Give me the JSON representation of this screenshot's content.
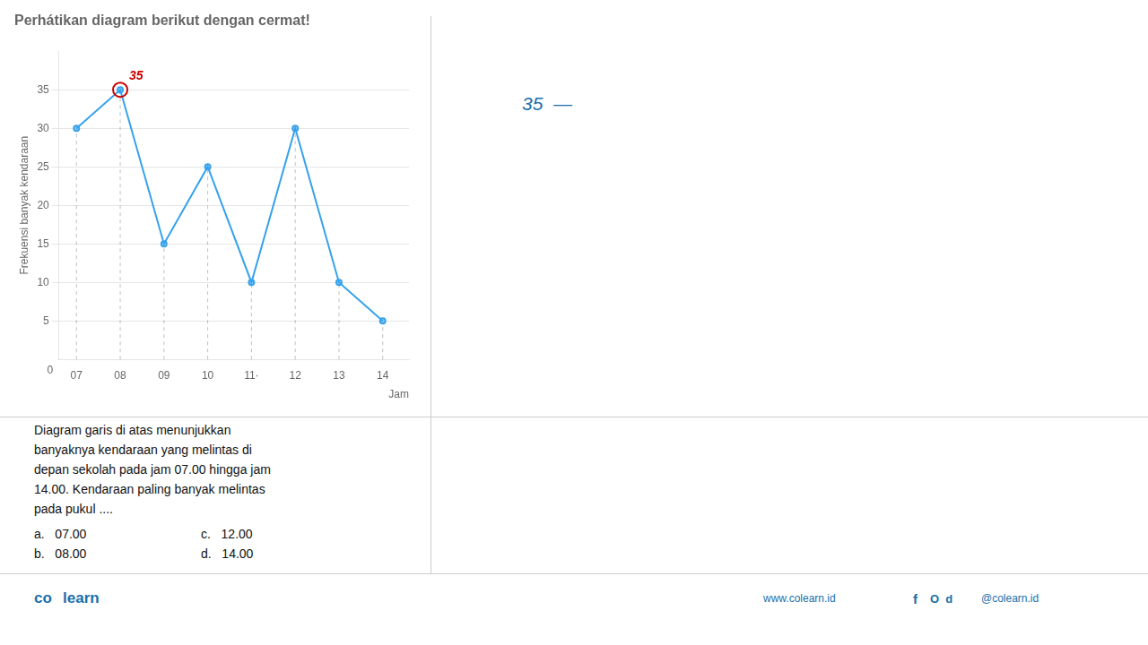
{
  "chart_data": {
    "type": "line",
    "title": "Perhátikan diagram berikut dengan cermat!",
    "x_label": "Jam",
    "y_label": "Frekuensi banyak kendaraan",
    "x": [
      7,
      8,
      9,
      10,
      11,
      12,
      13,
      14
    ],
    "values": [
      30,
      35,
      15,
      25,
      10,
      30,
      10,
      5
    ],
    "xlim": [
      6.6,
      14.6
    ],
    "xticks": [
      {
        "value": 7,
        "label": "07"
      },
      {
        "value": 8,
        "label": "08"
      },
      {
        "value": 9,
        "label": "09"
      },
      10,
      {
        "value": 11,
        "label": "11·"
      },
      12,
      13,
      14
    ],
    "ylim": [
      0,
      40
    ],
    "yticks": [
      5,
      10,
      15,
      20,
      25,
      30,
      35
    ],
    "grid": true,
    "marker": "circle",
    "annotations": [
      {
        "text": "35",
        "x": 8,
        "y": 35,
        "color": "#cc0000",
        "marker": "circle"
      },
      {
        "text": "0"
      }
    ]
  },
  "page": {
    "answer": {
      "text": "35  —",
      "color": "#1a6faa"
    },
    "body_text": [
      "Diagram garis di atas menunjukkan",
      "banyaknya kendaraan yang melintas di",
      "depan sekolah pada jam 07.00 hingga jam",
      "14.00. Kendaraan paling banyak melintas",
      "pada pukul ...."
    ],
    "choices": [
      "a.   07.00",
      "b.   08.00",
      "c.   12.00",
      "d.   14.00"
    ],
    "footer": {
      "color": "#1a6faa",
      "brand": [
        "co",
        "learn"
      ],
      "site": "www.colearn.id",
      "icons": [
        "f",
        "O  d"
      ],
      "handle": "@colearn.id"
    }
  }
}
